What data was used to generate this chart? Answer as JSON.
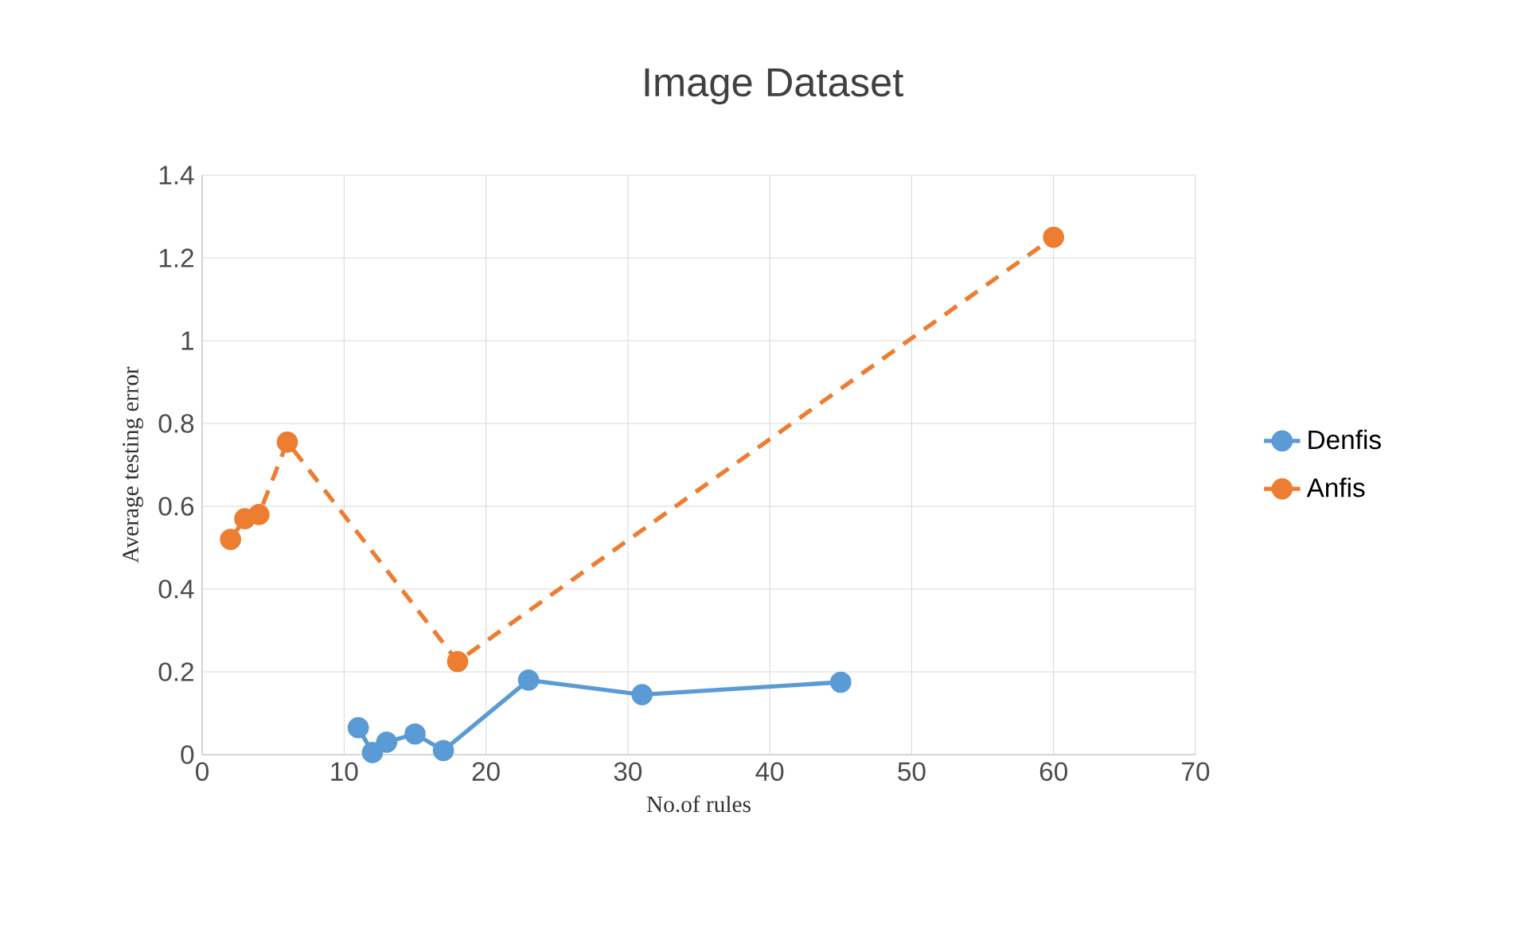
{
  "chart_data": {
    "type": "line",
    "title": "Image Dataset",
    "xlabel": "No.of rules",
    "ylabel": "Average testing error",
    "xlim": [
      0,
      70
    ],
    "xticks": [
      0,
      10,
      20,
      30,
      40,
      50,
      60,
      70
    ],
    "ylim": [
      0,
      1.4
    ],
    "yticks": [
      0,
      0.2,
      0.4,
      0.6,
      0.8,
      1,
      1.2,
      1.4
    ],
    "grid": true,
    "legend": "right",
    "marker": "circle",
    "series": [
      {
        "name": "Denfis",
        "color": "#5b9bd5",
        "line_style": "solid",
        "x": [
          11,
          12,
          13,
          15,
          17,
          23,
          31,
          45
        ],
        "values": [
          0.065,
          0.005,
          0.03,
          0.05,
          0.01,
          0.18,
          0.145,
          0.175
        ]
      },
      {
        "name": "Anfis",
        "color": "#ed7d31",
        "line_style": "dashed",
        "x": [
          2,
          3,
          4,
          6,
          18,
          60
        ],
        "values": [
          0.52,
          0.57,
          0.58,
          0.755,
          0.225,
          1.25
        ]
      }
    ]
  }
}
